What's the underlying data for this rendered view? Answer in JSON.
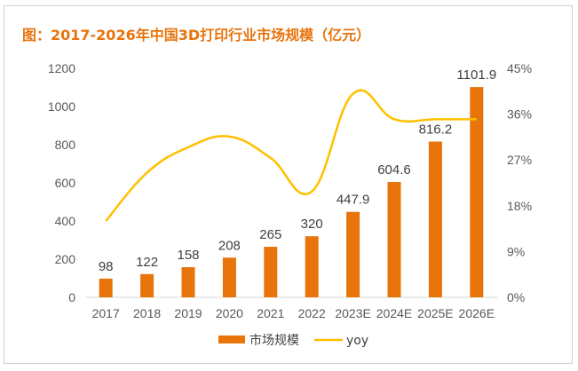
{
  "title": "图：2017-2026年中国3D打印行业市场规模（亿元）",
  "colors": {
    "bar": "#e8740c",
    "line": "#ffc000",
    "title": "#e8740c"
  },
  "chart_data": {
    "type": "bar",
    "categories": [
      "2017",
      "2018",
      "2019",
      "2020",
      "2021",
      "2022",
      "2023E",
      "2024E",
      "2025E",
      "2026E"
    ],
    "series": [
      {
        "name": "市场规模",
        "type": "bar",
        "axis": "left",
        "values": [
          98,
          122,
          158,
          208,
          265,
          320,
          447.9,
          604.6,
          816.2,
          1101.9
        ],
        "labels": [
          "98",
          "122",
          "158",
          "208",
          "265",
          "320",
          "447.9",
          "604.6",
          "816.2",
          "1101.9"
        ]
      },
      {
        "name": "yoy",
        "type": "line",
        "axis": "right",
        "smooth": true,
        "values": [
          15,
          24.5,
          29.5,
          31.6,
          27.4,
          20.8,
          40,
          35,
          35,
          35
        ]
      }
    ],
    "ylim_left": [
      0,
      1200
    ],
    "yticks_left": [
      "0",
      "200",
      "400",
      "600",
      "800",
      "1000",
      "1200"
    ],
    "ylim_right": [
      0,
      45
    ],
    "yticks_right": [
      "0%",
      "9%",
      "18%",
      "27%",
      "36%",
      "45%"
    ],
    "grid": false,
    "legend": "bottom"
  }
}
